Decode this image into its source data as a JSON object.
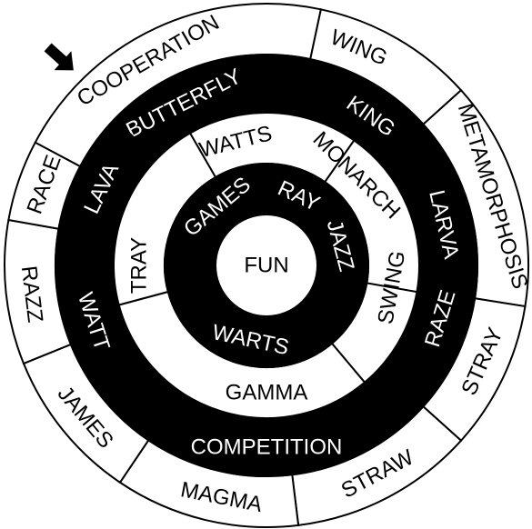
{
  "puzzle": {
    "center": {
      "label": "FUN"
    },
    "pointer": {
      "icon": "arrow-pointer-icon"
    },
    "colors": {
      "dark": "#000000",
      "light": "#ffffff",
      "stroke": "#000000"
    },
    "rings": [
      {
        "name": "outer-ring",
        "segments": [
          {
            "label": "COOPERATION",
            "fill": "light"
          },
          {
            "label": "WING",
            "fill": "light"
          },
          {
            "label": "METAMORPHOSIS",
            "fill": "light"
          },
          {
            "label": "STRAY",
            "fill": "light"
          },
          {
            "label": "STRAW",
            "fill": "light"
          },
          {
            "label": "MAGMA",
            "fill": "light"
          },
          {
            "label": "JAMES",
            "fill": "light"
          },
          {
            "label": "RAZZ",
            "fill": "light"
          },
          {
            "label": "RACE",
            "fill": "light"
          }
        ]
      },
      {
        "name": "third-ring",
        "segments": [
          {
            "label": "BUTTERFLY",
            "fill": "dark"
          },
          {
            "label": "KING",
            "fill": "dark"
          },
          {
            "label": "LARVA",
            "fill": "dark"
          },
          {
            "label": "RAZE",
            "fill": "dark"
          },
          {
            "label": "COMPETITION",
            "fill": "dark"
          },
          {
            "label": "WATT",
            "fill": "dark"
          },
          {
            "label": "LAVA",
            "fill": "dark"
          }
        ]
      },
      {
        "name": "second-ring",
        "segments": [
          {
            "label": "WATTS",
            "fill": "light"
          },
          {
            "label": "MONARCH",
            "fill": "light"
          },
          {
            "label": "SWING",
            "fill": "light"
          },
          {
            "label": "GAMMA",
            "fill": "light"
          },
          {
            "label": "TRAY",
            "fill": "light"
          }
        ]
      },
      {
        "name": "inner-ring",
        "segments": [
          {
            "label": "GAMES",
            "fill": "dark"
          },
          {
            "label": "RAY",
            "fill": "dark"
          },
          {
            "label": "JAZZ",
            "fill": "dark"
          },
          {
            "label": "WARTS",
            "fill": "dark"
          }
        ]
      }
    ]
  }
}
